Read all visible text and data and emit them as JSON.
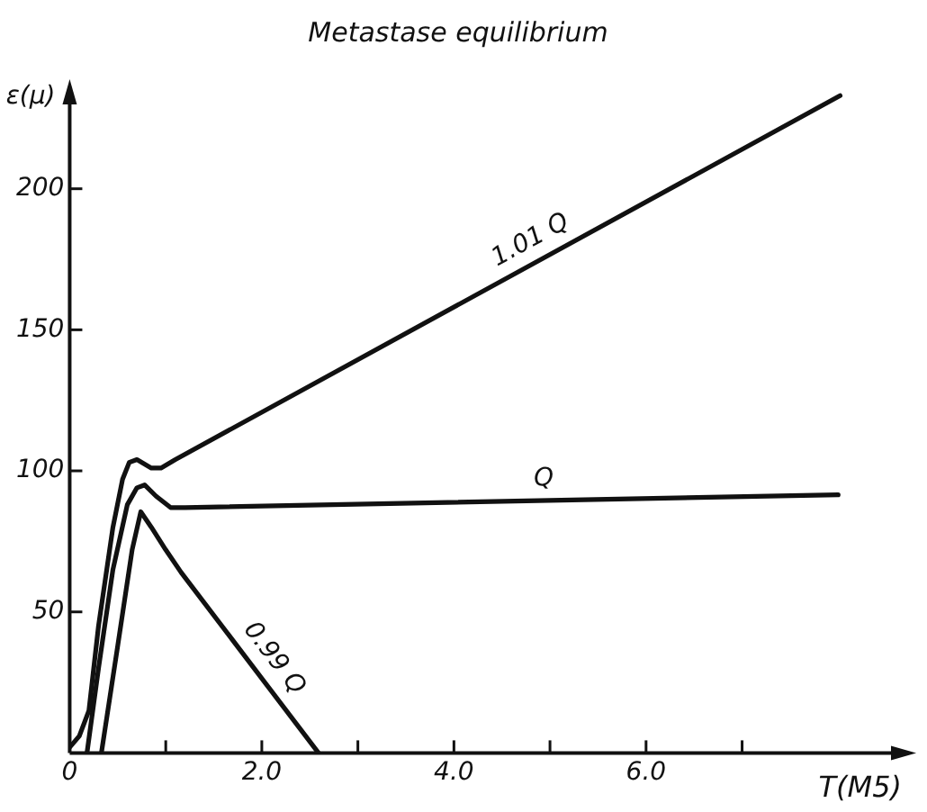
{
  "chart_data": {
    "type": "line",
    "title": "Metastase equilibrium",
    "xlabel": "T(M5)",
    "ylabel": "ε(μ)",
    "xlim": [
      0,
      8.7
    ],
    "ylim": [
      0,
      235
    ],
    "xticks": [
      0,
      {
        "value": 1,
        "label": null
      },
      {
        "value": 2,
        "label": "2.0"
      },
      {
        "value": 3,
        "label": null
      },
      {
        "value": 4,
        "label": "4.0"
      },
      {
        "value": 5,
        "label": null
      },
      {
        "value": 6,
        "label": "6.0"
      },
      {
        "value": 7,
        "label": null
      }
    ],
    "yticks": [
      50,
      100,
      150,
      200
    ],
    "grid": false,
    "legend": false,
    "marker": "none",
    "line_style": "solid",
    "series": [
      {
        "name": "1.01 Q",
        "color": "#111111",
        "x": [
          0,
          0.1,
          0.2,
          0.3,
          0.45,
          0.55,
          0.62,
          0.7,
          0.85,
          0.95,
          1.1,
          8.02
        ],
        "values": [
          2,
          6,
          15,
          45,
          80,
          97,
          103,
          104,
          101,
          101,
          104,
          233
        ]
      },
      {
        "name": "Q",
        "color": "#111111",
        "x": [
          0.18,
          0.3,
          0.45,
          0.6,
          0.7,
          0.78,
          0.9,
          1.05,
          1.2,
          8.0
        ],
        "values": [
          0,
          30,
          65,
          88,
          94,
          95,
          91,
          87,
          87,
          91.5
        ]
      },
      {
        "name": "0.99 Q",
        "color": "#111111",
        "x": [
          0.33,
          0.5,
          0.65,
          0.74,
          0.85,
          1.0,
          1.16,
          2.59
        ],
        "values": [
          0,
          38,
          72,
          85.5,
          80,
          72,
          64,
          0
        ]
      }
    ]
  }
}
